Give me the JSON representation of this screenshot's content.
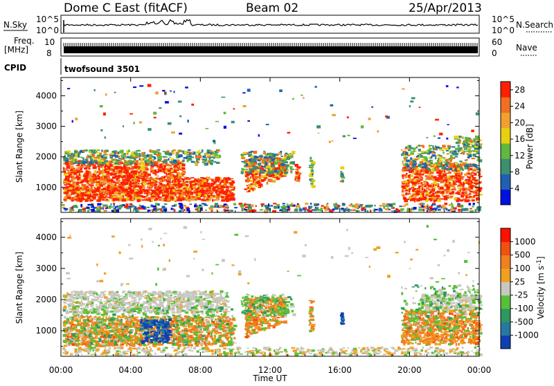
{
  "header": {
    "radar_title": "Dome C East (fitACF)",
    "beam": "Beam 02",
    "date": "25/Apr/2013"
  },
  "status_panels": {
    "nsky_label": "N.Sky",
    "nsky_top": "10^5",
    "nsky_bottom": "10^0",
    "nsearch_label": "N.Search",
    "nsearch_top": "10^5",
    "nsearch_bottom": "10^0",
    "freq_label_1": "Freq.",
    "freq_label_2": "[MHz]",
    "freq_top": "10",
    "freq_bottom": "8",
    "nave_label": "Nave",
    "nave_top": "60",
    "nave_bottom": "0",
    "cpid_label": "CPID",
    "cpid_value": "twofsound 3501"
  },
  "chart_data": [
    {
      "type": "heatmap",
      "name": "power",
      "ylabel": "Slant Range [km]",
      "ylim": [
        180,
        4600
      ],
      "yticks": [
        "1000",
        "2000",
        "3000",
        "4000"
      ],
      "colorbar_label": "Power [dB]",
      "colorbar_ticks": [
        "4",
        "8",
        "12",
        "16",
        "20",
        "24",
        "28"
      ],
      "colorbar_range": [
        0,
        30
      ],
      "colors": [
        "#0010e0",
        "#2060b0",
        "#3c9070",
        "#60b840",
        "#e8d010",
        "#f0a030",
        "#f07020",
        "#ff2000"
      ]
    },
    {
      "type": "heatmap",
      "name": "velocity",
      "ylabel": "Slant Range [km]",
      "ylim": [
        180,
        4600
      ],
      "yticks": [
        "1000",
        "2000",
        "3000",
        "4000"
      ],
      "xlabel": "Time UT",
      "xticks": [
        "00:00",
        "04:00",
        "08:00",
        "12:00",
        "16:00",
        "20:00",
        "00:00"
      ],
      "xlim_hours": [
        0,
        24
      ],
      "colorbar_label": "Velocity [m s-1]",
      "colorbar_ticks": [
        "1000",
        "500",
        "100",
        "25",
        "-25",
        "-100",
        "-500",
        "-1000"
      ],
      "colors": [
        "#1040b0",
        "#2878a0",
        "#2e9860",
        "#58c038",
        "#c8c8c0",
        "#f0a020",
        "#f08020",
        "#f05010",
        "#ff1000"
      ]
    }
  ]
}
